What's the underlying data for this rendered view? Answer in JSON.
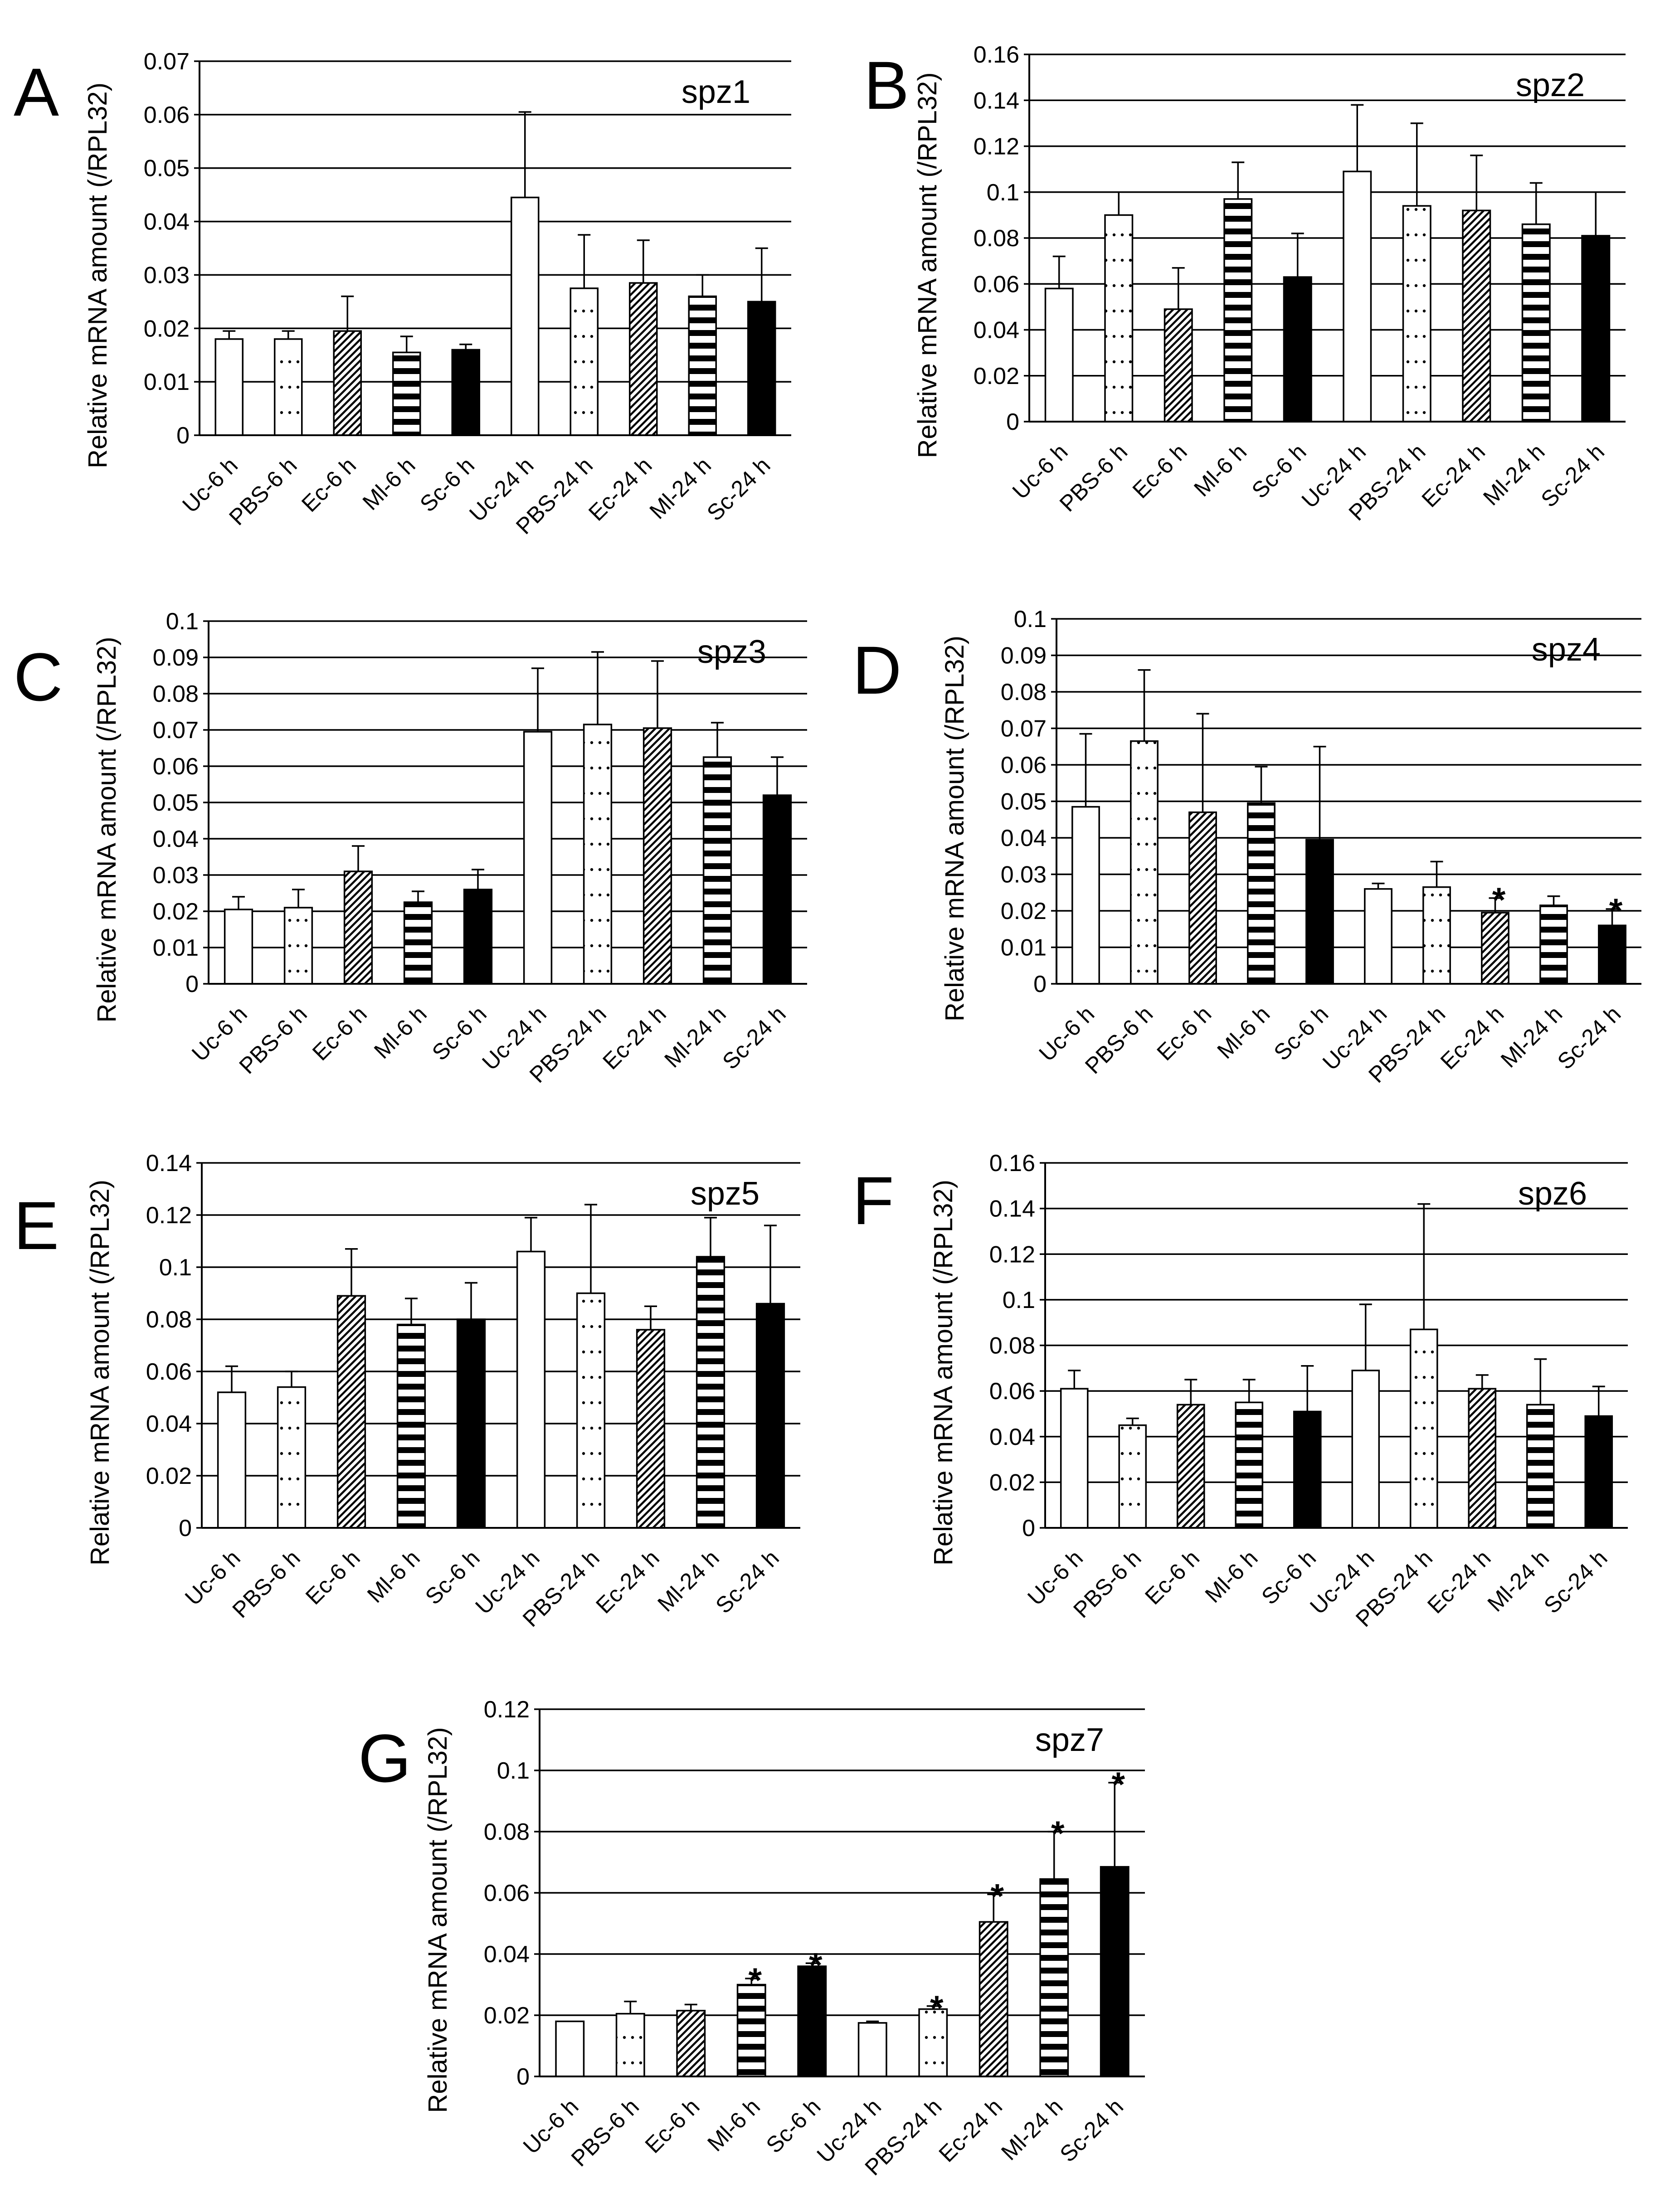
{
  "figure": {
    "ylabel": "Relative mRNA amount (/RPL32)",
    "categories": [
      "Uc-6 h",
      "PBS-6 h",
      "Ec-6 h",
      "Ml-6 h",
      "Sc-6 h",
      "Uc-24 h",
      "PBS-24 h",
      "Ec-24 h",
      "Ml-24 h",
      "Sc-24 h"
    ],
    "pattern_names": [
      "open",
      "dotted",
      "diagonal-hatch",
      "horizontal-stripes",
      "solid-black",
      "open",
      "dotted",
      "diagonal-hatch",
      "horizontal-stripes",
      "solid-black"
    ],
    "colors": {
      "bar_stroke": "#000000",
      "solid": "#000000",
      "gridline": "#000000"
    }
  },
  "chart_data": [
    {
      "panel": "A",
      "type": "bar",
      "title": "spz1",
      "ylim": [
        0,
        0.07
      ],
      "ystep": 0.01,
      "decimals": 2,
      "yticks": [
        "0",
        "0.01",
        "0.02",
        "0.03",
        "0.04",
        "0.05",
        "0.06",
        "0.07"
      ],
      "values": [
        0.018,
        0.018,
        0.0195,
        0.0155,
        0.016,
        0.0445,
        0.0275,
        0.0285,
        0.026,
        0.025
      ],
      "errors": [
        0.0015,
        0.0015,
        0.0065,
        0.003,
        0.001,
        0.016,
        0.01,
        0.008,
        0.004,
        0.01
      ],
      "significant": []
    },
    {
      "panel": "B",
      "type": "bar",
      "title": "spz2",
      "ylim": [
        0,
        0.16
      ],
      "ystep": 0.02,
      "decimals": 2,
      "yticks": [
        "0",
        "0.02",
        "0.04",
        "0.06",
        "0.08",
        "0.1",
        "0.12",
        "0.14",
        "0.16"
      ],
      "values": [
        0.058,
        0.09,
        0.049,
        0.097,
        0.063,
        0.109,
        0.094,
        0.092,
        0.086,
        0.081
      ],
      "errors": [
        0.014,
        0.01,
        0.018,
        0.016,
        0.019,
        0.029,
        0.036,
        0.024,
        0.018,
        0.019
      ],
      "significant": []
    },
    {
      "panel": "C",
      "type": "bar",
      "title": "spz3",
      "ylim": [
        0,
        0.1
      ],
      "ystep": 0.01,
      "decimals": 2,
      "yticks": [
        "0",
        "0.01",
        "0.02",
        "0.03",
        "0.04",
        "0.05",
        "0.06",
        "0.07",
        "0.08",
        "0.09",
        "0.1"
      ],
      "values": [
        0.0205,
        0.021,
        0.031,
        0.0225,
        0.026,
        0.0695,
        0.0715,
        0.0705,
        0.0625,
        0.052
      ],
      "errors": [
        0.0035,
        0.005,
        0.007,
        0.003,
        0.0055,
        0.0175,
        0.02,
        0.0185,
        0.0095,
        0.0105
      ],
      "significant": []
    },
    {
      "panel": "D",
      "type": "bar",
      "title": "spz4",
      "ylim": [
        0,
        0.1
      ],
      "ystep": 0.01,
      "decimals": 2,
      "yticks": [
        "0",
        "0.01",
        "0.02",
        "0.03",
        "0.04",
        "0.05",
        "0.06",
        "0.07",
        "0.08",
        "0.09",
        "0.1"
      ],
      "values": [
        0.0485,
        0.0665,
        0.047,
        0.0495,
        0.0395,
        0.026,
        0.0265,
        0.0195,
        0.0215,
        0.016
      ],
      "errors": [
        0.02,
        0.0195,
        0.027,
        0.01,
        0.0255,
        0.0015,
        0.007,
        0.004,
        0.0025,
        0.0045
      ],
      "significant": [
        7,
        9
      ]
    },
    {
      "panel": "E",
      "type": "bar",
      "title": "spz5",
      "ylim": [
        0,
        0.14
      ],
      "ystep": 0.02,
      "decimals": 2,
      "yticks": [
        "0",
        "0.02",
        "0.04",
        "0.06",
        "0.08",
        "0.1",
        "0.12",
        "0.14"
      ],
      "values": [
        0.052,
        0.054,
        0.089,
        0.078,
        0.08,
        0.106,
        0.09,
        0.076,
        0.104,
        0.086
      ],
      "errors": [
        0.01,
        0.006,
        0.018,
        0.01,
        0.014,
        0.013,
        0.034,
        0.009,
        0.015,
        0.03
      ],
      "significant": []
    },
    {
      "panel": "F",
      "type": "bar",
      "title": "spz6",
      "ylim": [
        0,
        0.16
      ],
      "ystep": 0.02,
      "decimals": 2,
      "yticks": [
        "0",
        "0.02",
        "0.04",
        "0.06",
        "0.08",
        "0.1",
        "0.12",
        "0.14",
        "0.16"
      ],
      "values": [
        0.061,
        0.045,
        0.054,
        0.055,
        0.051,
        0.069,
        0.087,
        0.061,
        0.054,
        0.049
      ],
      "errors": [
        0.008,
        0.003,
        0.011,
        0.01,
        0.02,
        0.029,
        0.055,
        0.006,
        0.02,
        0.013
      ],
      "significant": []
    },
    {
      "panel": "G",
      "type": "bar",
      "title": "spz7",
      "ylim": [
        0,
        0.12
      ],
      "ystep": 0.02,
      "decimals": 2,
      "yticks": [
        "0",
        "0.02",
        "0.04",
        "0.06",
        "0.08",
        "0.1",
        "0.12"
      ],
      "values": [
        0.018,
        0.0205,
        0.0215,
        0.03,
        0.036,
        0.0175,
        0.022,
        0.0505,
        0.0645,
        0.0685
      ],
      "errors": [
        0.0,
        0.004,
        0.002,
        0.002,
        0.001,
        0.0005,
        0.001,
        0.009,
        0.0155,
        0.0275
      ],
      "significant": [
        3,
        4,
        6,
        7,
        8,
        9
      ]
    }
  ]
}
